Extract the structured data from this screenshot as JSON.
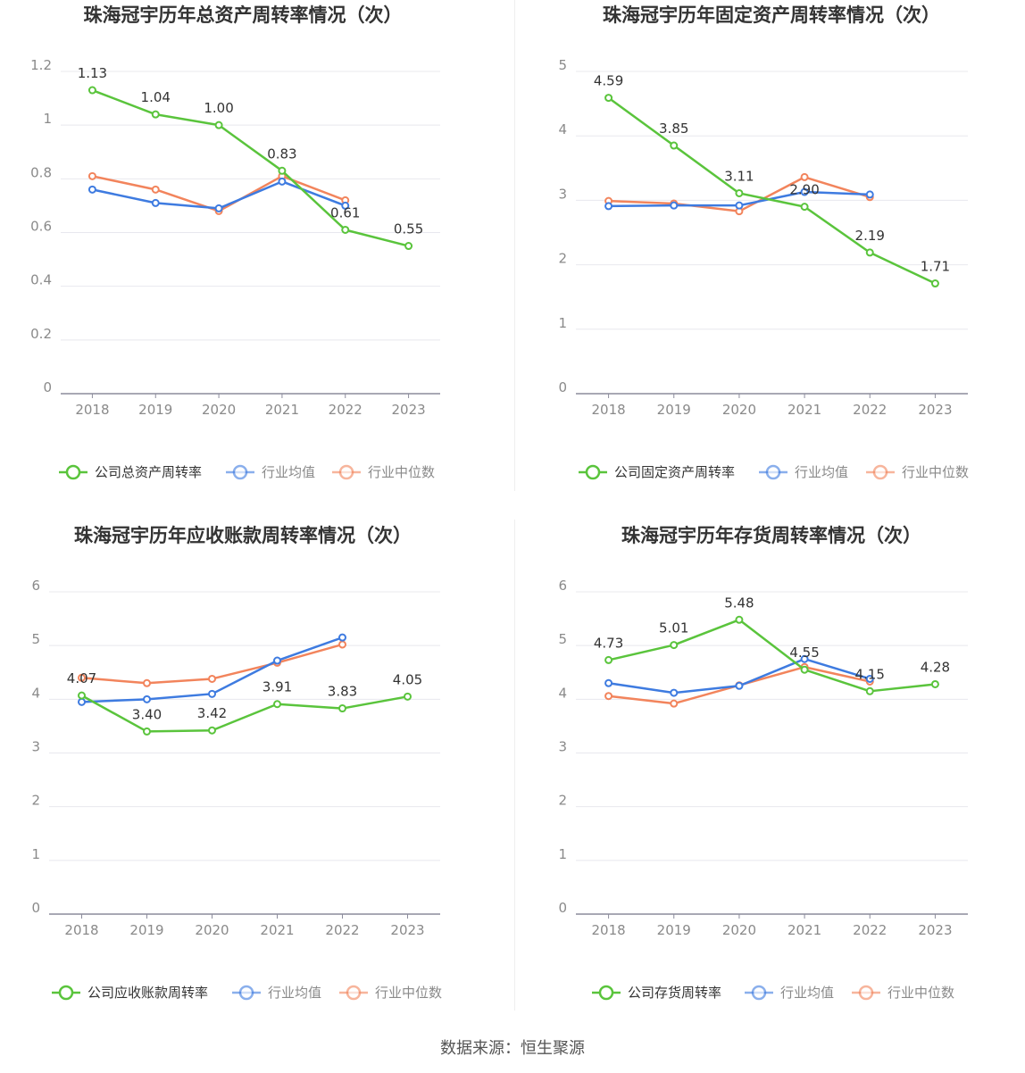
{
  "charts": [
    {
      "type": "line",
      "title": "珠海冠宇历年总资产周转率情况（次）",
      "categories": [
        "2018",
        "2019",
        "2020",
        "2021",
        "2022",
        "2023"
      ],
      "yticks": [
        "0",
        "0.2",
        "0.4",
        "0.6",
        "0.8",
        "1",
        "1.2"
      ],
      "ylim": [
        0,
        1.2
      ],
      "series": [
        {
          "name": "公司总资产周转率",
          "color": "#5ac43c",
          "values": [
            1.13,
            1.04,
            1.0,
            0.83,
            0.61,
            0.55
          ],
          "labels": [
            "1.13",
            "1.04",
            "1.00",
            "0.83",
            "0.61",
            "0.55"
          ]
        },
        {
          "name": "行业均值",
          "color": "#3e7be0",
          "values": [
            0.76,
            0.71,
            0.69,
            0.79,
            0.7,
            null
          ]
        },
        {
          "name": "行业中位数",
          "color": "#f2845c",
          "values": [
            0.81,
            0.76,
            0.68,
            0.81,
            0.72,
            null
          ]
        }
      ]
    },
    {
      "type": "line",
      "title": "珠海冠宇历年固定资产周转率情况（次）",
      "categories": [
        "2018",
        "2019",
        "2020",
        "2021",
        "2022",
        "2023"
      ],
      "yticks": [
        "0",
        "1",
        "2",
        "3",
        "4",
        "5"
      ],
      "ylim": [
        0,
        5
      ],
      "series": [
        {
          "name": "公司固定资产周转率",
          "color": "#5ac43c",
          "values": [
            4.59,
            3.85,
            3.11,
            2.9,
            2.19,
            1.71
          ],
          "labels": [
            "4.59",
            "3.85",
            "3.11",
            "2.90",
            "2.19",
            "1.71"
          ]
        },
        {
          "name": "行业均值",
          "color": "#3e7be0",
          "values": [
            2.91,
            2.92,
            2.92,
            3.13,
            3.09,
            null
          ]
        },
        {
          "name": "行业中位数",
          "color": "#f2845c",
          "values": [
            2.99,
            2.95,
            2.83,
            3.36,
            3.05,
            null
          ]
        }
      ]
    },
    {
      "type": "line",
      "title": "珠海冠宇历年应收账款周转率情况（次）",
      "categories": [
        "2018",
        "2019",
        "2020",
        "2021",
        "2022",
        "2023"
      ],
      "yticks": [
        "0",
        "1",
        "2",
        "3",
        "4",
        "5",
        "6"
      ],
      "ylim": [
        0,
        6
      ],
      "series": [
        {
          "name": "公司应收账款周转率",
          "color": "#5ac43c",
          "values": [
            4.07,
            3.4,
            3.42,
            3.91,
            3.83,
            4.05
          ],
          "labels": [
            "4.07",
            "3.40",
            "3.42",
            "3.91",
            "3.83",
            "4.05"
          ]
        },
        {
          "name": "行业均值",
          "color": "#3e7be0",
          "values": [
            3.95,
            4.0,
            4.1,
            4.72,
            5.15,
            null
          ]
        },
        {
          "name": "行业中位数",
          "color": "#f2845c",
          "values": [
            4.4,
            4.3,
            4.38,
            4.68,
            5.02,
            null
          ]
        }
      ]
    },
    {
      "type": "line",
      "title": "珠海冠宇历年存货周转率情况（次）",
      "categories": [
        "2018",
        "2019",
        "2020",
        "2021",
        "2022",
        "2023"
      ],
      "yticks": [
        "0",
        "1",
        "2",
        "3",
        "4",
        "5",
        "6"
      ],
      "ylim": [
        0,
        6
      ],
      "series": [
        {
          "name": "公司存货周转率",
          "color": "#5ac43c",
          "values": [
            4.73,
            5.01,
            5.48,
            4.55,
            4.15,
            4.28
          ],
          "labels": [
            "4.73",
            "5.01",
            "5.48",
            "4.55",
            "4.15",
            "4.28"
          ]
        },
        {
          "name": "行业均值",
          "color": "#3e7be0",
          "values": [
            4.3,
            4.12,
            4.25,
            4.75,
            4.38,
            null
          ]
        },
        {
          "name": "行业中位数",
          "color": "#f2845c",
          "values": [
            4.06,
            3.92,
            4.26,
            4.6,
            4.33,
            null
          ]
        }
      ]
    }
  ],
  "source": "数据来源：恒生聚源"
}
